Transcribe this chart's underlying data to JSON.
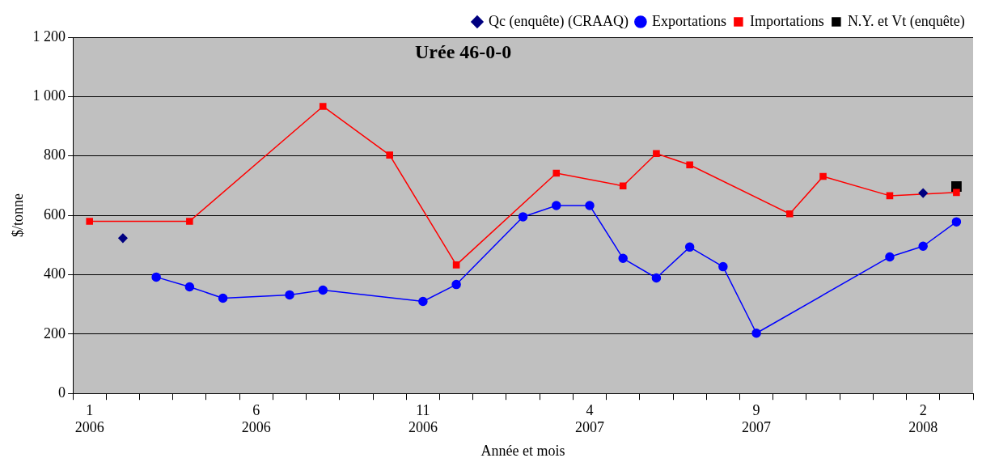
{
  "chart_data": {
    "type": "line",
    "title": "Urée 46-0-0",
    "xlabel": "Année et mois",
    "ylabel": "$/tonne",
    "categories": [
      "1\n2006",
      null,
      null,
      null,
      null,
      "6\n2006",
      null,
      null,
      null,
      null,
      "11\n2006",
      null,
      null,
      null,
      null,
      "4\n2007",
      null,
      null,
      null,
      null,
      "9\n2007",
      null,
      null,
      null,
      null,
      "2\n2008",
      null
    ],
    "series": [
      {
        "name": "Qc (enquête) (CRAAQ)",
        "type": "scatter",
        "marker": "diamond",
        "color": "#000080",
        "values": [
          null,
          523,
          null,
          null,
          null,
          null,
          null,
          null,
          null,
          null,
          null,
          null,
          null,
          null,
          null,
          null,
          null,
          null,
          null,
          null,
          null,
          null,
          null,
          null,
          null,
          675,
          null
        ]
      },
      {
        "name": "Exportations",
        "marker": "circle",
        "color": "#0000ff",
        "values": [
          null,
          null,
          392,
          359,
          321,
          null,
          332,
          348,
          null,
          null,
          310,
          367,
          null,
          595,
          633,
          633,
          455,
          389,
          493,
          427,
          203,
          null,
          null,
          null,
          460,
          496,
          578
        ]
      },
      {
        "name": "Importations",
        "marker": "square",
        "color": "#ff0000",
        "values": [
          580,
          null,
          null,
          580,
          null,
          null,
          null,
          967,
          null,
          803,
          null,
          433,
          null,
          null,
          742,
          null,
          699,
          808,
          770,
          null,
          null,
          605,
          731,
          null,
          666,
          null,
          677
        ]
      },
      {
        "name": "N.Y. et Vt (enquête)",
        "type": "scatter",
        "marker": "square",
        "color": "#000000",
        "values": [
          null,
          null,
          null,
          null,
          null,
          null,
          null,
          null,
          null,
          null,
          null,
          null,
          null,
          null,
          null,
          null,
          null,
          null,
          null,
          null,
          null,
          null,
          null,
          null,
          null,
          null,
          697
        ]
      }
    ],
    "ylim": [
      0,
      1200
    ],
    "yticks": [
      {
        "value": 0,
        "label": "0"
      },
      {
        "value": 200,
        "label": "200"
      },
      {
        "value": 400,
        "label": "400"
      },
      {
        "value": 600,
        "label": "600"
      },
      {
        "value": 800,
        "label": "800"
      },
      {
        "value": 1000,
        "label": "1 000"
      },
      {
        "value": 1200,
        "label": "1 200"
      }
    ],
    "grid": "y",
    "legend": "top right"
  }
}
